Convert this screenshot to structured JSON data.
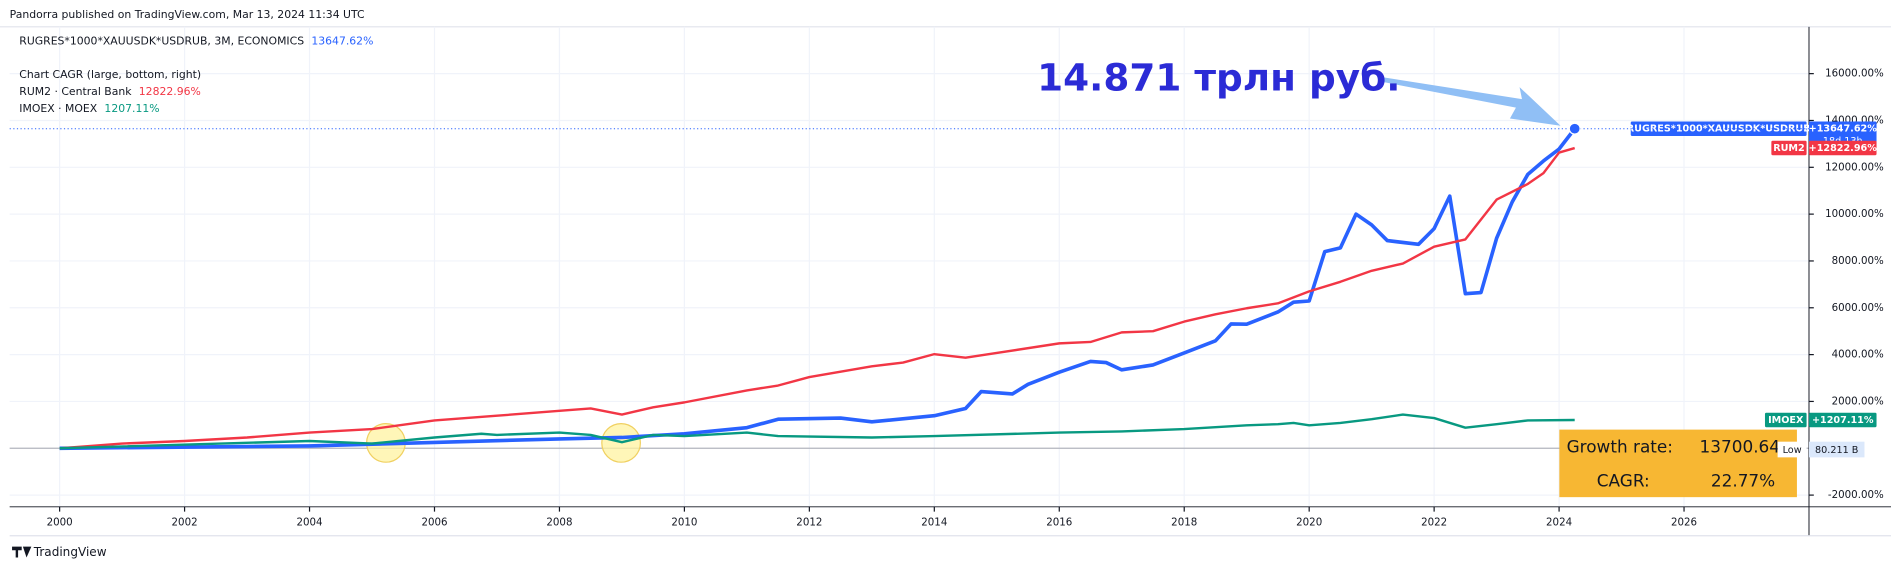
{
  "header": "Pandorra published on TradingView.com, Mar 13, 2024 11:34 UTC",
  "indicator": "Chart CAGR (large, bottom, right)",
  "annotation": "14.871 трлн руб.",
  "countdown": "18d 13h",
  "low_label": "Low",
  "low_value": "80.211 B",
  "growth_box": {
    "rate_label": "Growth rate:",
    "rate": "13700.64",
    "cagr_label": "CAGR:",
    "cagr": "22.77%"
  },
  "footer": "TradingView",
  "chart_data": {
    "type": "line",
    "xlim": [
      1999.2,
      2028
    ],
    "xticks": [
      2000,
      2002,
      2004,
      2006,
      2008,
      2010,
      2012,
      2014,
      2016,
      2018,
      2020,
      2022,
      2024,
      2026
    ],
    "ylim": [
      -2500,
      18000
    ],
    "yticks": [
      {
        "value": -2000,
        "label": "-2000.00%"
      },
      {
        "value": 2000,
        "label": "2000.00%"
      },
      {
        "value": 4000,
        "label": "4000.00%"
      },
      {
        "value": 6000,
        "label": "6000.00%"
      },
      {
        "value": 8000,
        "label": "8000.00%"
      },
      {
        "value": 10000,
        "label": "10000.00%"
      },
      {
        "value": 12000,
        "label": "12000.00%"
      },
      {
        "value": 14000,
        "label": "14000.00%"
      },
      {
        "value": 16000,
        "label": "16000.00%"
      }
    ],
    "grid": true,
    "series": [
      {
        "name": "RUGRES*1000*XAUUSDK*USDRUB, 3M, ECONOMICS",
        "axis_name": "RUGRES*1000*XAUUSDK*USDRUB",
        "legend_value": "13647.62%",
        "axis_value": "+13647.62%",
        "color": "#2962ff",
        "width": 3,
        "x": [
          2000,
          2004,
          2006,
          2008,
          2009,
          2010,
          2011,
          2011.5,
          2012.5,
          2013,
          2014,
          2014.5,
          2014.75,
          2015.25,
          2015.5,
          2016,
          2016.5,
          2016.75,
          2017,
          2017.5,
          2018,
          2018.5,
          2018.75,
          2019,
          2019.5,
          2019.75,
          2020,
          2020.25,
          2020.5,
          2020.75,
          2021,
          2021.25,
          2021.75,
          2022,
          2022.25,
          2022.5,
          2022.75,
          2023,
          2023.25,
          2023.5,
          2023.75,
          2024,
          2024.25
        ],
        "values": [
          0,
          100,
          250,
          400,
          460,
          620,
          880,
          1240,
          1290,
          1130,
          1390,
          1700,
          2420,
          2320,
          2730,
          3250,
          3710,
          3660,
          3350,
          3560,
          4070,
          4590,
          5310,
          5300,
          5820,
          6240,
          6290,
          8400,
          8560,
          10000,
          9540,
          8870,
          8710,
          9380,
          10770,
          6600,
          6650,
          8970,
          10520,
          11700,
          12270,
          12780,
          13647.62
        ]
      },
      {
        "name": "RUM2 · Central Bank",
        "axis_name": "RUM2",
        "legend_value": "12822.96%",
        "axis_value": "+12822.96%",
        "color": "#f23645",
        "width": 2,
        "x": [
          2000,
          2001,
          2002,
          2003,
          2004,
          2005,
          2006,
          2007,
          2008,
          2008.5,
          2009,
          2009.5,
          2010,
          2011,
          2011.5,
          2012,
          2013,
          2013.5,
          2014,
          2014.5,
          2015,
          2016,
          2016.5,
          2017,
          2017.5,
          2018,
          2018.5,
          2019,
          2019.5,
          2020,
          2020.5,
          2021,
          2021.5,
          2022,
          2022.5,
          2023,
          2023.5,
          2023.75,
          2024,
          2024.25
        ],
        "values": [
          0,
          200,
          310,
          460,
          670,
          820,
          1190,
          1390,
          1600,
          1700,
          1440,
          1750,
          1960,
          2470,
          2680,
          3040,
          3500,
          3660,
          4020,
          3870,
          4070,
          4480,
          4540,
          4950,
          5000,
          5410,
          5720,
          5980,
          6190,
          6700,
          7110,
          7580,
          7890,
          8610,
          8920,
          10620,
          11290,
          11750,
          12630,
          12822.96
        ]
      },
      {
        "name": "IMOEX · MOEX",
        "axis_name": "IMOEX",
        "legend_value": "1207.11%",
        "axis_value": "+1207.11%",
        "color": "#089981",
        "width": 2,
        "x": [
          2000,
          2004,
          2005,
          2006,
          2006.75,
          2007,
          2008,
          2008.5,
          2009,
          2009.5,
          2010,
          2011,
          2011.5,
          2013,
          2014,
          2016,
          2017,
          2018,
          2019,
          2019.5,
          2019.75,
          2020,
          2020.5,
          2021,
          2021.5,
          2022,
          2022.5,
          2023,
          2023.5,
          2024.25
        ],
        "values": [
          0,
          310,
          200,
          460,
          620,
          570,
          670,
          570,
          260,
          570,
          520,
          670,
          520,
          460,
          520,
          670,
          720,
          820,
          980,
          1030,
          1080,
          980,
          1080,
          1240,
          1440,
          1290,
          880,
          1030,
          1190,
          1207.11
        ]
      }
    ]
  }
}
